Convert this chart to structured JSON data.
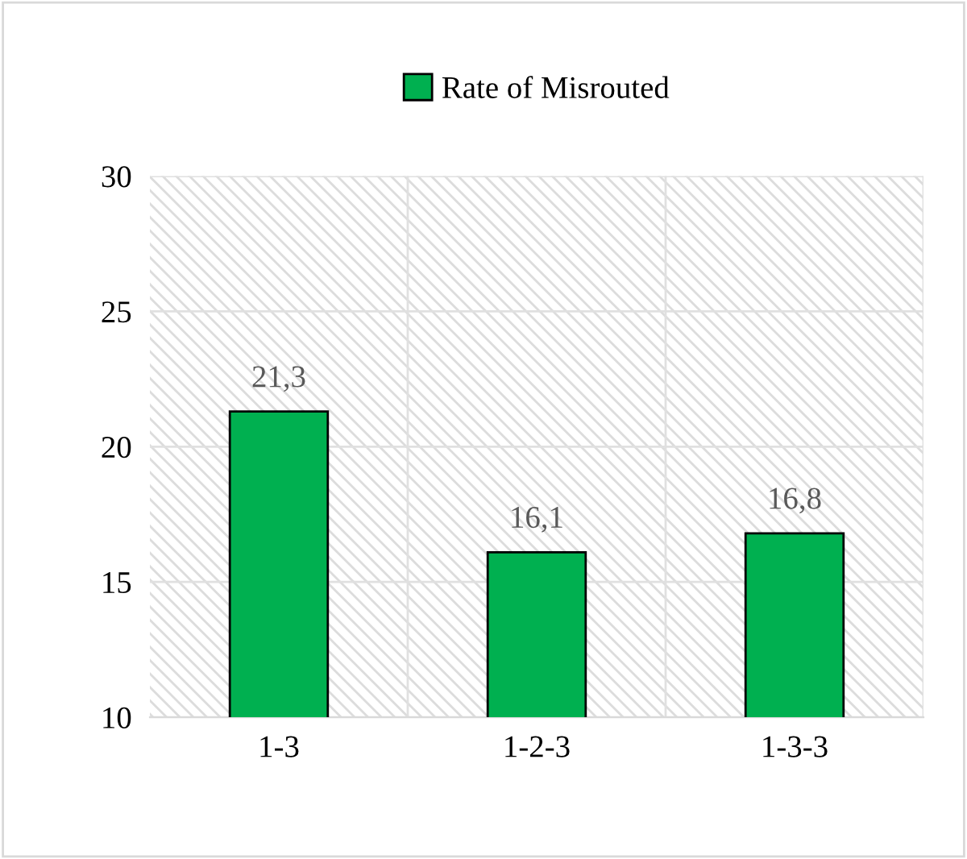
{
  "chart_data": {
    "type": "bar",
    "categories": [
      "1-3",
      "1-2-3",
      "1-3-3"
    ],
    "series": [
      {
        "name": "Rate of Misrouted",
        "color": "#00b050",
        "values": [
          21.3,
          16.1,
          16.8
        ],
        "value_labels": [
          "21,3",
          "16,1",
          "16,8"
        ]
      }
    ],
    "ylim": [
      10,
      30
    ],
    "yticks": [
      10,
      15,
      20,
      25,
      30
    ],
    "grid": true,
    "legend": "top"
  }
}
